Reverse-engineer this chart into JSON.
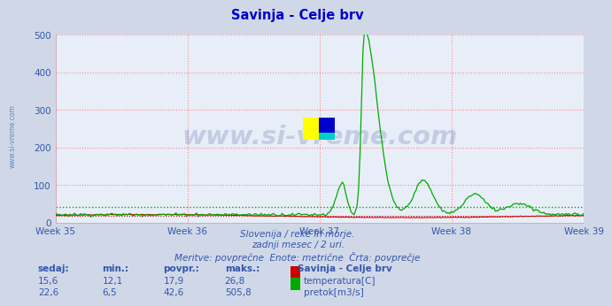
{
  "title": "Savinja - Celje brv",
  "title_color": "#0000cc",
  "bg_color": "#d0d8e8",
  "plot_bg_color": "#e8eef8",
  "grid_color": "#ff8888",
  "grid_style": "dotted",
  "x_labels": [
    "Week 35",
    "Week 36",
    "Week 37",
    "Week 38",
    "Week 39"
  ],
  "x_label_color": "#3355aa",
  "ylim": [
    0,
    500
  ],
  "yticks": [
    0,
    100,
    200,
    300,
    400,
    500
  ],
  "temp_color": "#cc0000",
  "flow_color": "#00aa00",
  "watermark_text": "www.si-vreme.com",
  "watermark_color": "#1a3a8a",
  "watermark_alpha": 0.18,
  "side_label": "www.si-vreme.com",
  "side_label_color": "#3366aa",
  "subtitle_lines": [
    "Slovenija / reke in morje.",
    "zadnji mesec / 2 uri.",
    "Meritve: povprečne  Enote: metrične  Črta: povprečje"
  ],
  "subtitle_color": "#3355aa",
  "table_header": [
    "sedaj:",
    "min.:",
    "povpr.:",
    "maks.:"
  ],
  "table_row1": [
    "15,6",
    "12,1",
    "17,9",
    "26,8"
  ],
  "table_row2": [
    "22,6",
    "6,5",
    "42,6",
    "505,8"
  ],
  "legend_labels": [
    "temperatura[C]",
    "pretok[m3/s]"
  ],
  "legend_colors": [
    "#cc0000",
    "#00aa00"
  ],
  "station_label": "Savinja - Celje brv",
  "n_points": 360,
  "avg_flow_level": 42.6,
  "avg_temp_level": 17.9
}
